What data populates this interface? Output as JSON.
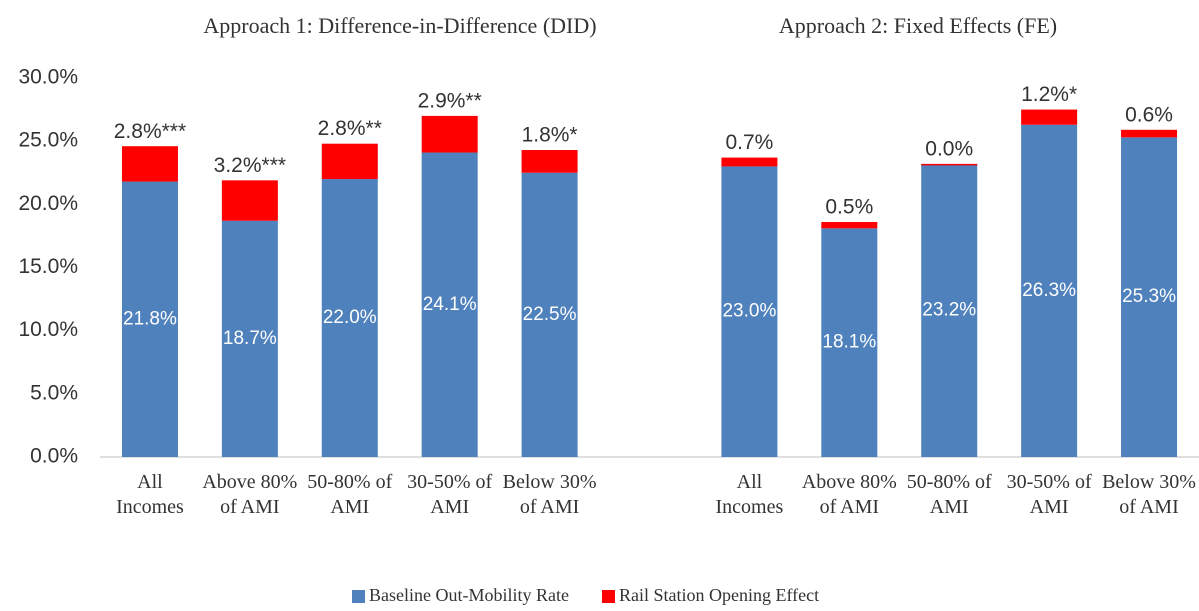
{
  "chart_data": {
    "type": "stacked_bar",
    "panel_titles": [
      "Approach 1: Difference-in-Difference (DID)",
      "Approach 2: Fixed Effects (FE)"
    ],
    "categories": [
      "All Incomes",
      "Above 80% of AMI",
      "50-80% of AMI",
      "30-50% of AMI",
      "Below 30% of AMI",
      null,
      "All Incomes",
      "Above 80% of AMI",
      "50-80% of AMI",
      "30-50% of AMI",
      "Below 30% of AMI"
    ],
    "series": [
      {
        "name": "Baseline Out-Mobility Rate",
        "color": "#4f81bd",
        "values": [
          21.8,
          18.7,
          22.0,
          24.1,
          22.5,
          null,
          23.0,
          18.1,
          23.2,
          26.3,
          25.3
        ],
        "value_labels": [
          "21.8%",
          "18.7%",
          "22.0%",
          "24.1%",
          "22.5%",
          null,
          "23.0%",
          "18.1%",
          "23.2%",
          "26.3%",
          "25.3%"
        ]
      },
      {
        "name": "Rail Station Opening Effect",
        "color": "#ff0000",
        "values": [
          2.8,
          3.2,
          2.8,
          2.9,
          1.8,
          null,
          0.7,
          0.5,
          0.0,
          1.2,
          0.6
        ],
        "value_labels": [
          "2.8%***",
          "3.2%***",
          "2.8%**",
          "2.9%**",
          "1.8%*",
          null,
          "0.7%",
          "0.5%",
          "0.0%",
          "1.2%*",
          "0.6%"
        ]
      }
    ],
    "ylim": [
      0,
      30
    ],
    "yticks": [
      {
        "value": 0,
        "label": "0.0%"
      },
      {
        "value": 5,
        "label": "5.0%"
      },
      {
        "value": 10,
        "label": "10.0%"
      },
      {
        "value": 15,
        "label": "15.0%"
      },
      {
        "value": 20,
        "label": "20.0%"
      },
      {
        "value": 25,
        "label": "25.0%"
      },
      {
        "value": 30,
        "label": "30.0%"
      }
    ],
    "grid": false
  }
}
